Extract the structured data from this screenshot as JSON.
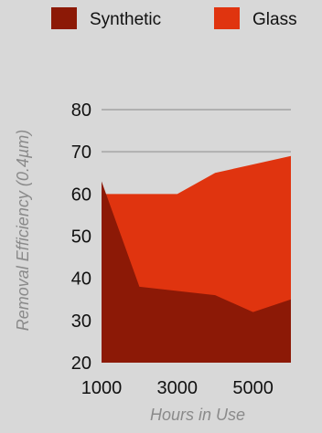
{
  "chart_data": {
    "type": "area",
    "stacked": false,
    "xlabel": "Hours in Use",
    "ylabel": "Removal Efficiency (0.4µm)",
    "xlim": [
      1000,
      6000
    ],
    "ylim": [
      20,
      80
    ],
    "x_ticks": [
      "1000",
      "3000",
      "5000"
    ],
    "y_ticks": [
      "80",
      "70",
      "60",
      "50",
      "40",
      "30",
      "20"
    ],
    "grid": true,
    "legend_position": "top",
    "x": [
      1000,
      2000,
      3000,
      4000,
      5000,
      6000
    ],
    "series": [
      {
        "name": "Glass",
        "color": "#e0340f",
        "values": [
          60,
          60,
          60,
          65,
          67,
          69
        ]
      },
      {
        "name": "Synthetic",
        "color": "#8c1906",
        "values": [
          63,
          38,
          37,
          36,
          32,
          35
        ]
      }
    ],
    "legend_order": [
      "Synthetic",
      "Glass"
    ]
  }
}
